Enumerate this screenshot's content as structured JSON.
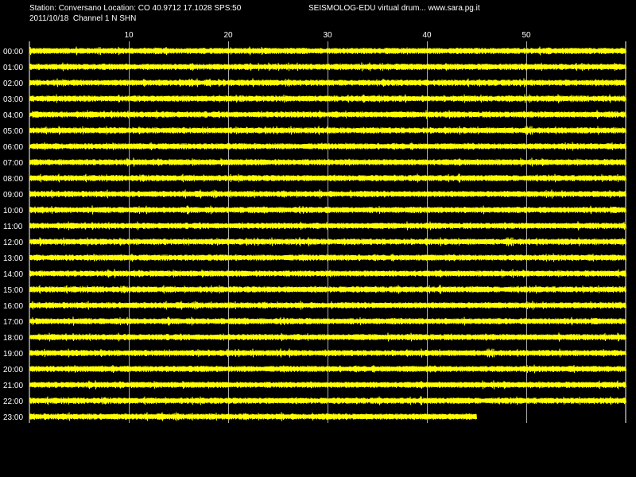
{
  "header": {
    "station_line": "Station: Conversano Location: CO 40.9712 17.1028 SPS:50",
    "date_line": "2011/10/18  Channel 1 N SHN",
    "app_line": "SEISMOLOG-EDU virtual drum... www.sara.pg.it"
  },
  "chart_data": {
    "type": "line",
    "title": "",
    "xlabel": "",
    "ylabel": "",
    "x_ticks": [
      "10",
      "20",
      "30",
      "40",
      "50"
    ],
    "x_tick_values": [
      10,
      20,
      30,
      40,
      50
    ],
    "xlim": [
      0,
      60
    ],
    "grid": true,
    "background": "#000000",
    "trace_color": "#ffff00",
    "grid_color": "#ffffff",
    "rows": [
      {
        "label": "00:00",
        "end_minute": 60
      },
      {
        "label": "01:00",
        "end_minute": 60
      },
      {
        "label": "02:00",
        "end_minute": 60
      },
      {
        "label": "03:00",
        "end_minute": 60
      },
      {
        "label": "04:00",
        "end_minute": 60
      },
      {
        "label": "05:00",
        "end_minute": 60
      },
      {
        "label": "06:00",
        "end_minute": 60
      },
      {
        "label": "07:00",
        "end_minute": 60
      },
      {
        "label": "08:00",
        "end_minute": 60
      },
      {
        "label": "09:00",
        "end_minute": 60
      },
      {
        "label": "10:00",
        "end_minute": 60
      },
      {
        "label": "11:00",
        "end_minute": 60
      },
      {
        "label": "12:00",
        "end_minute": 60
      },
      {
        "label": "13:00",
        "end_minute": 60
      },
      {
        "label": "14:00",
        "end_minute": 60
      },
      {
        "label": "15:00",
        "end_minute": 60
      },
      {
        "label": "16:00",
        "end_minute": 60
      },
      {
        "label": "17:00",
        "end_minute": 60
      },
      {
        "label": "18:00",
        "end_minute": 60
      },
      {
        "label": "19:00",
        "end_minute": 60
      },
      {
        "label": "20:00",
        "end_minute": 60
      },
      {
        "label": "21:00",
        "end_minute": 60
      },
      {
        "label": "22:00",
        "end_minute": 60
      },
      {
        "label": "23:00",
        "end_minute": 45
      }
    ]
  }
}
